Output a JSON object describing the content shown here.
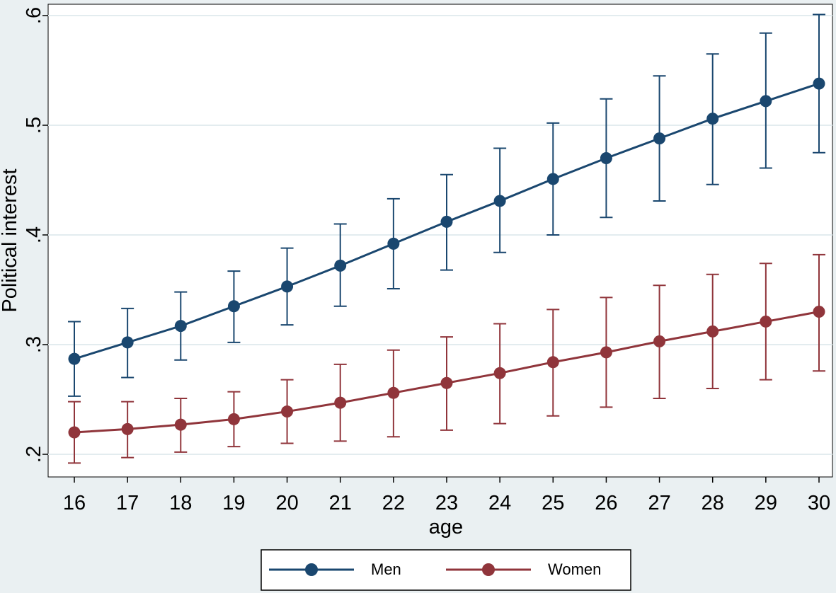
{
  "chart_data": {
    "type": "line",
    "title": "",
    "xlabel": "age",
    "ylabel": "Political interest",
    "x": [
      16,
      17,
      18,
      19,
      20,
      21,
      22,
      23,
      24,
      25,
      26,
      27,
      28,
      29,
      30
    ],
    "x_tick_labels": [
      "16",
      "17",
      "18",
      "19",
      "20",
      "21",
      "22",
      "23",
      "24",
      "25",
      "26",
      "27",
      "28",
      "29",
      "30"
    ],
    "xlim": [
      16,
      30
    ],
    "ylim": [
      0.2,
      0.6
    ],
    "y_ticks": [
      0.2,
      0.3,
      0.4,
      0.5,
      0.6
    ],
    "y_tick_labels": [
      ".2",
      ".3",
      ".4",
      ".5",
      ".6"
    ],
    "grid": true,
    "legend_position": "bottom",
    "error_bars": true,
    "series": [
      {
        "name": "Men",
        "color": "#1a476f",
        "values": [
          0.287,
          0.302,
          0.317,
          0.335,
          0.353,
          0.372,
          0.392,
          0.412,
          0.431,
          0.451,
          0.47,
          0.488,
          0.506,
          0.522,
          0.538
        ],
        "lower": [
          0.253,
          0.27,
          0.286,
          0.302,
          0.318,
          0.335,
          0.351,
          0.368,
          0.384,
          0.4,
          0.416,
          0.431,
          0.446,
          0.461,
          0.475
        ],
        "upper": [
          0.321,
          0.333,
          0.348,
          0.367,
          0.388,
          0.41,
          0.433,
          0.455,
          0.479,
          0.502,
          0.524,
          0.545,
          0.565,
          0.584,
          0.601
        ]
      },
      {
        "name": "Women",
        "color": "#90353b",
        "values": [
          0.22,
          0.223,
          0.227,
          0.232,
          0.239,
          0.247,
          0.256,
          0.265,
          0.274,
          0.284,
          0.293,
          0.303,
          0.312,
          0.321,
          0.33
        ],
        "lower": [
          0.192,
          0.197,
          0.202,
          0.207,
          0.21,
          0.212,
          0.216,
          0.222,
          0.228,
          0.235,
          0.243,
          0.251,
          0.26,
          0.268,
          0.276
        ],
        "upper": [
          0.248,
          0.248,
          0.251,
          0.257,
          0.268,
          0.282,
          0.295,
          0.307,
          0.319,
          0.332,
          0.343,
          0.354,
          0.364,
          0.374,
          0.382
        ]
      }
    ]
  }
}
